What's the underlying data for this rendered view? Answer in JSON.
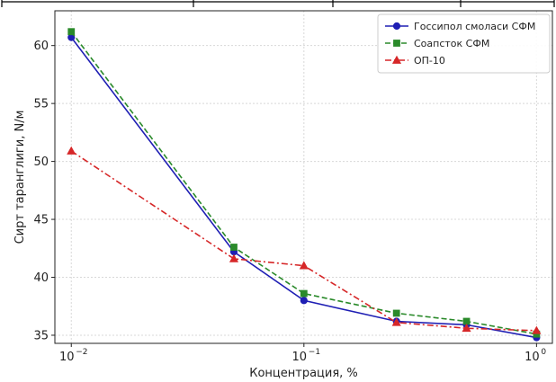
{
  "chart_data": {
    "type": "line",
    "x": [
      0.01,
      0.05,
      0.1,
      0.25,
      0.5,
      1.0
    ],
    "x_scale": "log",
    "x_ticks": [
      {
        "value": 0.01,
        "base": "10",
        "exp": "−2"
      },
      {
        "value": 0.1,
        "base": "10",
        "exp": "−1"
      },
      {
        "value": 1,
        "base": "10",
        "exp": "0"
      }
    ],
    "xlabel": "Концентрация, %",
    "ylabel": "Сирт таранглиги, N/м",
    "xlim": [
      0.0085,
      1.17
    ],
    "ylim": [
      34.3,
      63.0
    ],
    "y_ticks": [
      "35",
      "40",
      "45",
      "50",
      "55",
      "60"
    ],
    "grid": true,
    "legend_position": "top-right",
    "series": [
      {
        "name": "Госсипол смоласи СФМ",
        "color": "#1f1fb4",
        "dash": "solid",
        "marker": "circle",
        "values": [
          60.7,
          42.2,
          38.0,
          36.2,
          35.9,
          34.8
        ]
      },
      {
        "name": "Соапсток СФМ",
        "color": "#2a8a2a",
        "dash": "dashed",
        "marker": "square",
        "values": [
          61.2,
          42.6,
          38.6,
          36.9,
          36.2,
          35.1
        ]
      },
      {
        "name": "ОП-10",
        "color": "#d62728",
        "dash": "dashdot",
        "marker": "triangle",
        "values": [
          50.9,
          41.6,
          41.0,
          36.1,
          35.6,
          35.4
        ]
      }
    ]
  }
}
